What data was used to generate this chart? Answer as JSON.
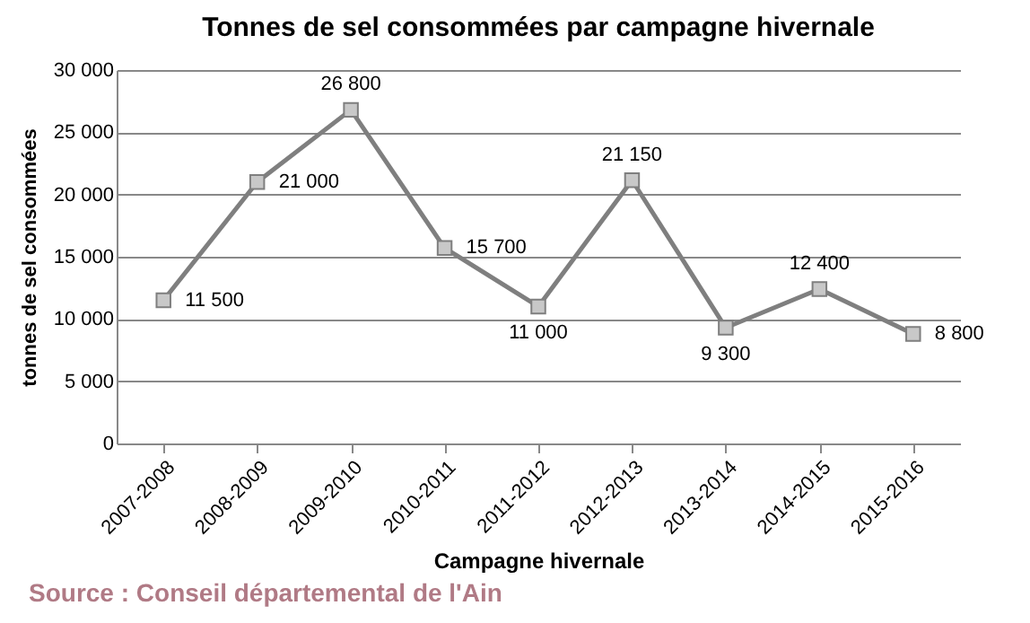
{
  "chart_data": {
    "type": "line",
    "title": "Tonnes de sel consommées par campagne hivernale",
    "xlabel": "Campagne hivernale",
    "ylabel": "tonnes de sel consommées",
    "categories": [
      "2007-2008",
      "2008-2009",
      "2009-2010",
      "2010-2011",
      "2011-2012",
      "2012-2013",
      "2013-2014",
      "2014-2015",
      "2015-2016"
    ],
    "series": [
      {
        "color": "#7f7f7f",
        "values": [
          11500,
          21000,
          26800,
          15700,
          11000,
          21150,
          9300,
          12400,
          8800
        ],
        "value_labels": [
          "11 500",
          "21 000",
          "26 800",
          "15 700",
          "11 000",
          "21 150",
          "9 300",
          "12 400",
          "8 800"
        ]
      }
    ],
    "ylim": [
      0,
      30000
    ],
    "yticks": [
      {
        "value": 0,
        "label": "0"
      },
      {
        "value": 5000,
        "label": "5 000"
      },
      {
        "value": 10000,
        "label": "10 000"
      },
      {
        "value": 15000,
        "label": "15 000"
      },
      {
        "value": 20000,
        "label": "20 000"
      },
      {
        "value": 25000,
        "label": "25 000"
      },
      {
        "value": 30000,
        "label": "30 000"
      }
    ],
    "grid": "y",
    "marker": "square",
    "line_style": "solid",
    "annotations": [
      "Source : Conseil départemental de l'Ain"
    ]
  }
}
